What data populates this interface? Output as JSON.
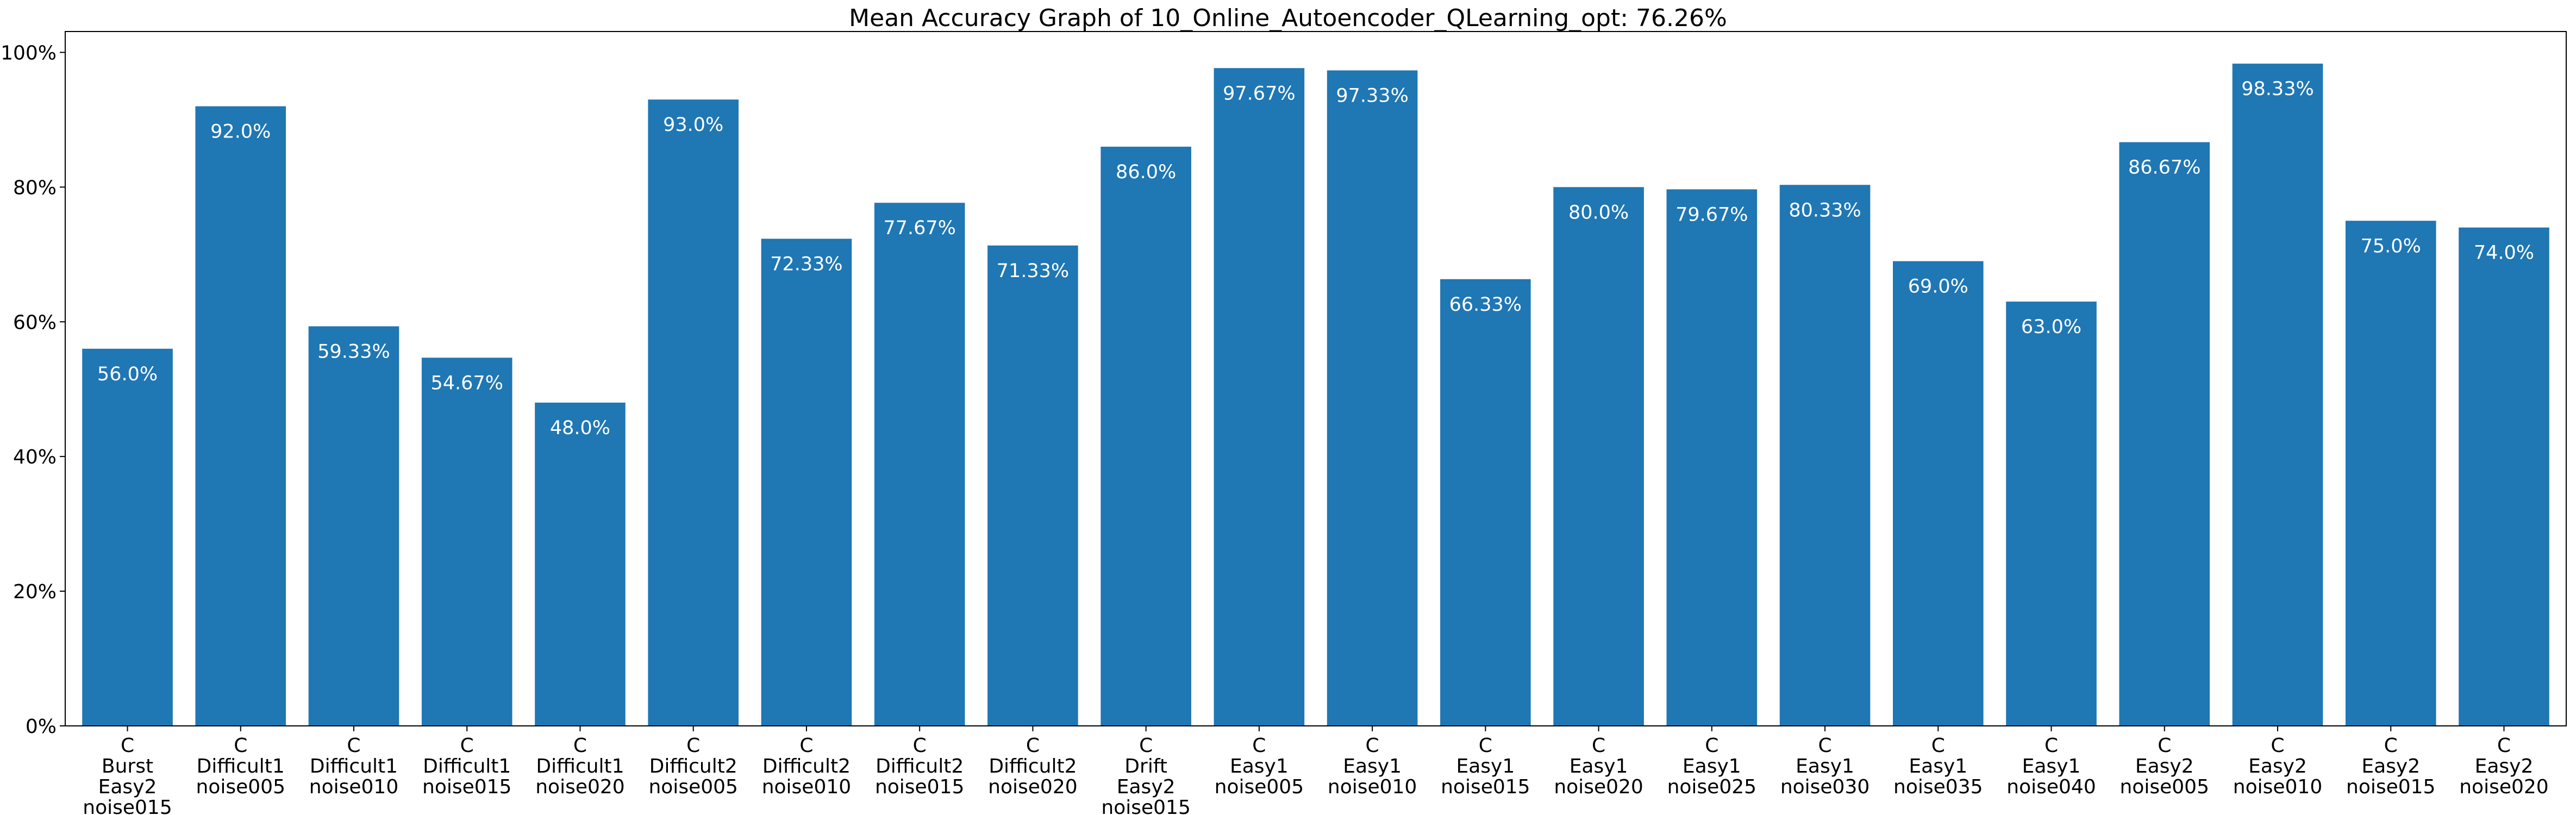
{
  "chart_data": {
    "type": "bar",
    "title": "Mean Accuracy Graph of 10_Online_Autoencoder_QLearning_opt: 76.26%",
    "xlabel": "",
    "ylabel": "",
    "ylim": [
      0,
      100
    ],
    "yticks": [
      0,
      20,
      40,
      60,
      80,
      100
    ],
    "ytick_labels": [
      "0%",
      "20%",
      "40%",
      "60%",
      "80%",
      "100%"
    ],
    "grid": false,
    "bar_color": "#1f77b4",
    "label_color": "#ffffff",
    "categories": [
      [
        "C",
        "Burst",
        "Easy2",
        "noise015"
      ],
      [
        "C",
        "Difficult1",
        "noise005"
      ],
      [
        "C",
        "Difficult1",
        "noise010"
      ],
      [
        "C",
        "Difficult1",
        "noise015"
      ],
      [
        "C",
        "Difficult1",
        "noise020"
      ],
      [
        "C",
        "Difficult2",
        "noise005"
      ],
      [
        "C",
        "Difficult2",
        "noise010"
      ],
      [
        "C",
        "Difficult2",
        "noise015"
      ],
      [
        "C",
        "Difficult2",
        "noise020"
      ],
      [
        "C",
        "Drift",
        "Easy2",
        "noise015"
      ],
      [
        "C",
        "Easy1",
        "noise005"
      ],
      [
        "C",
        "Easy1",
        "noise010"
      ],
      [
        "C",
        "Easy1",
        "noise015"
      ],
      [
        "C",
        "Easy1",
        "noise020"
      ],
      [
        "C",
        "Easy1",
        "noise025"
      ],
      [
        "C",
        "Easy1",
        "noise030"
      ],
      [
        "C",
        "Easy1",
        "noise035"
      ],
      [
        "C",
        "Easy1",
        "noise040"
      ],
      [
        "C",
        "Easy2",
        "noise005"
      ],
      [
        "C",
        "Easy2",
        "noise010"
      ],
      [
        "C",
        "Easy2",
        "noise015"
      ],
      [
        "C",
        "Easy2",
        "noise020"
      ]
    ],
    "values": [
      56.0,
      92.0,
      59.33,
      54.67,
      48.0,
      93.0,
      72.33,
      77.67,
      71.33,
      86.0,
      97.67,
      97.33,
      66.33,
      80.0,
      79.67,
      80.33,
      69.0,
      63.0,
      86.67,
      98.33,
      75.0,
      74.0
    ],
    "value_labels": [
      "56.0%",
      "92.0%",
      "59.33%",
      "54.67%",
      "48.0%",
      "93.0%",
      "72.33%",
      "77.67%",
      "71.33%",
      "86.0%",
      "97.67%",
      "97.33%",
      "66.33%",
      "80.0%",
      "79.67%",
      "80.33%",
      "69.0%",
      "63.0%",
      "86.67%",
      "98.33%",
      "75.0%",
      "74.0%"
    ]
  }
}
